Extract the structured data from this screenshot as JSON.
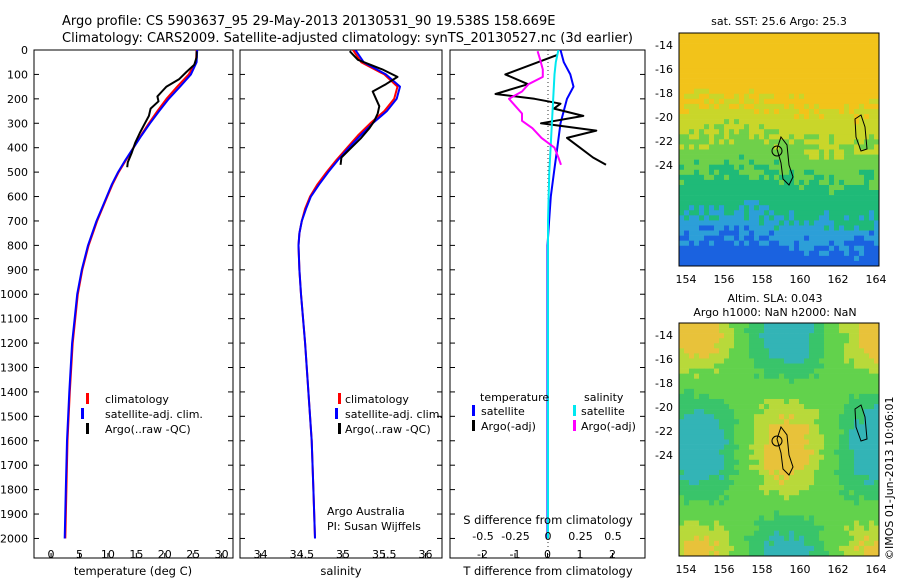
{
  "header": {
    "line1": "Argo profile: CS 5903637_95 29-May-2013 20130531_90 19.538S 158.669E",
    "line2": "Climatology: CARS2009. Satellite-adjusted climatology: synTS_20130527.nc (3d earlier)"
  },
  "colors": {
    "climatology": "#ff0000",
    "satellite": "#0000ff",
    "argo": "#000000",
    "sal_satellite": "#00e8f0",
    "sal_argo": "#ff00ff"
  },
  "depth_ticks": [
    "0",
    "100",
    "200",
    "300",
    "400",
    "500",
    "600",
    "700",
    "800",
    "900",
    "1000",
    "1100",
    "1200",
    "1300",
    "1400",
    "1500",
    "1600",
    "1700",
    "1800",
    "1900",
    "2000"
  ],
  "chart_data": [
    {
      "name": "temperature",
      "type": "line",
      "xlabel": "temperature (deg C)",
      "x_ticks": [
        "0",
        "5",
        "10",
        "15",
        "20",
        "25",
        "30"
      ],
      "xlim": [
        -3,
        32
      ],
      "ylim": [
        0,
        2080
      ],
      "legend": {
        "climatology": "climatology",
        "satellite": "satellite-adj. clim.",
        "argo": "Argo(..raw -QC)"
      },
      "series": [
        {
          "name": "climatology",
          "depth": [
            0,
            50,
            100,
            150,
            200,
            250,
            300,
            350,
            400,
            450,
            500,
            550,
            600,
            650,
            700,
            800,
            900,
            1000,
            1200,
            1400,
            1600,
            1800,
            2000
          ],
          "values": [
            25.6,
            25.5,
            24.2,
            22.2,
            20.3,
            18.7,
            17.2,
            15.8,
            14.5,
            13.2,
            11.9,
            10.8,
            9.9,
            9.0,
            8.1,
            6.6,
            5.5,
            4.7,
            3.8,
            3.3,
            2.9,
            2.7,
            2.5
          ]
        },
        {
          "name": "satellite",
          "depth": [
            0,
            50,
            100,
            150,
            200,
            250,
            300,
            350,
            400,
            450,
            500,
            550,
            600,
            650,
            700,
            800,
            900,
            1000,
            1200,
            1400,
            1600,
            1800,
            2000
          ],
          "values": [
            25.7,
            25.6,
            24.6,
            22.7,
            20.7,
            19.0,
            17.4,
            15.9,
            14.5,
            13.1,
            11.8,
            10.7,
            9.8,
            8.9,
            8.0,
            6.5,
            5.4,
            4.6,
            3.7,
            3.2,
            2.8,
            2.6,
            2.4
          ]
        },
        {
          "name": "argo",
          "depth": [
            5,
            30,
            60,
            90,
            120,
            150,
            170,
            190,
            210,
            240,
            270,
            300,
            340,
            380,
            420,
            460,
            480
          ],
          "values": [
            25.6,
            25.6,
            25.2,
            23.8,
            22.5,
            20.3,
            19.5,
            18.7,
            18.9,
            17.5,
            17.2,
            16.5,
            15.6,
            14.8,
            14.2,
            13.5,
            13.4
          ]
        }
      ]
    },
    {
      "name": "salinity",
      "type": "line",
      "xlabel": "salinity",
      "x_ticks": [
        "34",
        "34.5",
        "35",
        "35.5",
        "36"
      ],
      "xlim": [
        33.75,
        36.2
      ],
      "ylim": [
        0,
        2080
      ],
      "legend": {
        "climatology": "climatology",
        "satellite": "satellite-adj. clim.",
        "argo": "Argo(..raw -QC)"
      },
      "credit": [
        "Argo Australia",
        "PI: Susan Wijffels"
      ],
      "series": [
        {
          "name": "climatology",
          "depth": [
            0,
            50,
            100,
            150,
            200,
            250,
            300,
            350,
            400,
            450,
            500,
            550,
            600,
            650,
            700,
            750,
            800,
            900,
            1000,
            1200,
            1400,
            1600,
            1800,
            2000
          ],
          "values": [
            35.12,
            35.22,
            35.5,
            35.66,
            35.62,
            35.5,
            35.33,
            35.18,
            35.05,
            34.92,
            34.8,
            34.69,
            34.6,
            34.54,
            34.5,
            34.47,
            34.46,
            34.47,
            34.49,
            34.54,
            34.58,
            34.62,
            34.64,
            34.66
          ]
        },
        {
          "name": "satellite",
          "depth": [
            0,
            50,
            100,
            150,
            200,
            250,
            300,
            350,
            400,
            450,
            500,
            550,
            600,
            650,
            700,
            750,
            800,
            900,
            1000,
            1200,
            1400,
            1600,
            1800,
            2000
          ],
          "values": [
            35.15,
            35.25,
            35.52,
            35.69,
            35.65,
            35.53,
            35.36,
            35.21,
            35.07,
            34.94,
            34.82,
            34.71,
            34.61,
            34.55,
            34.5,
            34.47,
            34.46,
            34.47,
            34.49,
            34.54,
            34.58,
            34.62,
            34.64,
            34.66
          ]
        },
        {
          "name": "argo",
          "depth": [
            5,
            40,
            80,
            110,
            140,
            170,
            200,
            230,
            260,
            290,
            320,
            360,
            400,
            440,
            470
          ],
          "values": [
            35.08,
            35.18,
            35.48,
            35.66,
            35.52,
            35.36,
            35.4,
            35.44,
            35.42,
            35.38,
            35.32,
            35.22,
            35.1,
            34.98,
            34.97
          ]
        }
      ]
    },
    {
      "name": "difference",
      "type": "line",
      "xlabel_top": "S difference from climatology",
      "xlabel_bottom": "T difference from climatology",
      "x_ticks_S": [
        "-0.5",
        "-0.25",
        "0",
        "0.25",
        "0.5"
      ],
      "x_ticks_T": [
        "-2",
        "-1",
        "0",
        "1",
        "2"
      ],
      "xlim_T": [
        -3,
        3
      ],
      "ylim": [
        0,
        2080
      ],
      "legend": {
        "temperature": "temperature",
        "salinity": "salinity",
        "satellite": "satellite",
        "argo": "Argo(-adj)"
      },
      "series": [
        {
          "name": "temperature satellite",
          "depth": [
            0,
            50,
            100,
            150,
            200,
            300,
            400,
            500,
            600,
            700,
            800,
            1000,
            1500,
            2000
          ],
          "values": [
            0.4,
            0.5,
            0.7,
            0.8,
            0.6,
            0.4,
            0.3,
            0.2,
            0.1,
            0.05,
            0.0,
            0.0,
            0.0,
            0.0
          ]
        },
        {
          "name": "temperature argo",
          "depth": [
            20,
            60,
            100,
            140,
            180,
            200,
            220,
            240,
            270,
            300,
            330,
            360,
            400,
            440,
            470
          ],
          "values": [
            0.3,
            -0.5,
            -1.3,
            -0.6,
            -1.6,
            -0.4,
            0.4,
            0.2,
            1.1,
            -0.2,
            1.5,
            0.6,
            1.0,
            1.4,
            1.8
          ]
        },
        {
          "name": "salinity satellite",
          "depth": [
            0,
            50,
            100,
            200,
            300,
            400,
            500,
            700,
            1000,
            1500,
            2000
          ],
          "values": [
            0.08,
            0.06,
            0.05,
            0.04,
            0.03,
            0.02,
            0.01,
            0.0,
            0.0,
            0.0,
            0.0
          ]
        },
        {
          "name": "salinity argo",
          "depth": [
            5,
            40,
            80,
            110,
            140,
            170,
            200,
            230,
            260,
            290,
            320,
            360,
            400,
            440,
            470
          ],
          "values": [
            -0.08,
            -0.06,
            -0.04,
            -0.04,
            -0.15,
            -0.2,
            -0.3,
            -0.25,
            -0.2,
            -0.2,
            -0.12,
            -0.05,
            0.05,
            0.08,
            0.1
          ]
        }
      ]
    },
    {
      "name": "sst-map",
      "type": "heatmap",
      "title": "sat. SST: 25.6 Argo: 25.3",
      "x_ticks": [
        "154",
        "156",
        "158",
        "160",
        "162",
        "164"
      ],
      "y_ticks": [
        "-14",
        "-16",
        "-18",
        "-20",
        "-22",
        "-24"
      ]
    },
    {
      "name": "sla-map",
      "type": "heatmap",
      "title_line1": "Altim. SLA: 0.043",
      "title_line2": "Argo h1000: NaN h2000: NaN",
      "x_ticks": [
        "154",
        "156",
        "158",
        "160",
        "162",
        "164"
      ],
      "y_ticks": [
        "-14",
        "-16",
        "-18",
        "-20",
        "-22",
        "-24"
      ]
    }
  ],
  "side_label": "©IMOS 01-Jun-2013 10:06:01"
}
